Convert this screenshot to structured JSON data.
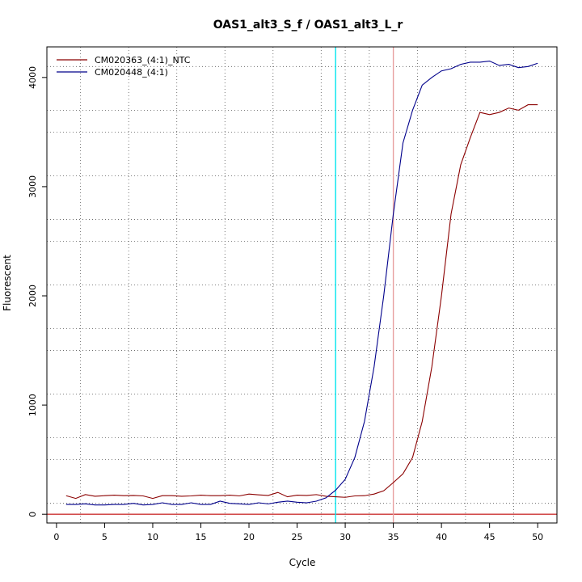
{
  "chart_data": {
    "type": "line",
    "title": "OAS1_alt3_S_f / OAS1_alt3_L_r",
    "xlabel": "Cycle",
    "ylabel": "Fluorescent",
    "xlim": [
      -1,
      52
    ],
    "ylim": [
      -80,
      4280
    ],
    "x_ticks": [
      0,
      5,
      10,
      15,
      20,
      25,
      30,
      35,
      40,
      45,
      50
    ],
    "y_ticks": [
      0,
      1000,
      2000,
      3000,
      4000
    ],
    "x_grid": [
      2.5,
      7.5,
      12.5,
      17.5,
      22.5,
      27.5,
      30.0,
      32.5,
      35.0,
      37.5,
      42.5,
      47.5
    ],
    "y_grid": [
      100,
      500,
      700,
      1100,
      1500,
      1700,
      2100,
      2500,
      2700,
      3100,
      3500,
      3700,
      4100
    ],
    "grid": "dotted",
    "legend_position": "top-left",
    "vertical_lines": [
      {
        "x": 29.0,
        "color": "#00e5ee"
      },
      {
        "x": 35.0,
        "color": "#e8a0a0"
      }
    ],
    "baseline": {
      "y": 0,
      "color": "#cc3333"
    },
    "series": [
      {
        "name": "CM020363_(4:1)_NTC",
        "color": "#8b0000",
        "x": [
          1,
          2,
          3,
          4,
          5,
          6,
          7,
          8,
          9,
          10,
          11,
          12,
          13,
          14,
          15,
          16,
          17,
          18,
          19,
          20,
          21,
          22,
          23,
          24,
          25,
          26,
          27,
          28,
          29,
          30,
          31,
          32,
          33,
          34,
          35,
          36,
          37,
          38,
          39,
          40,
          41,
          42,
          43,
          44,
          45,
          46,
          47,
          48,
          49,
          50
        ],
        "values": [
          170,
          145,
          180,
          165,
          170,
          175,
          170,
          172,
          168,
          145,
          170,
          170,
          165,
          168,
          175,
          170,
          170,
          175,
          168,
          185,
          178,
          172,
          200,
          160,
          175,
          172,
          180,
          165,
          160,
          155,
          168,
          170,
          185,
          215,
          290,
          370,
          520,
          850,
          1350,
          2000,
          2750,
          3200,
          3450,
          3680,
          3660,
          3680,
          3720,
          3700,
          3750,
          3750
        ]
      },
      {
        "name": "CM020448_(4:1)",
        "color": "#00008b",
        "x": [
          1,
          2,
          3,
          4,
          5,
          6,
          7,
          8,
          9,
          10,
          11,
          12,
          13,
          14,
          15,
          16,
          17,
          18,
          19,
          20,
          21,
          22,
          23,
          24,
          25,
          26,
          27,
          28,
          29,
          30,
          31,
          32,
          33,
          34,
          35,
          36,
          37,
          38,
          39,
          40,
          41,
          42,
          43,
          44,
          45,
          46,
          47,
          48,
          49,
          50
        ],
        "values": [
          90,
          90,
          95,
          85,
          85,
          90,
          90,
          100,
          85,
          90,
          105,
          90,
          90,
          105,
          90,
          90,
          120,
          100,
          95,
          90,
          105,
          95,
          110,
          120,
          110,
          105,
          120,
          150,
          220,
          320,
          520,
          850,
          1350,
          2000,
          2750,
          3400,
          3700,
          3930,
          4000,
          4060,
          4080,
          4120,
          4140,
          4140,
          4150,
          4110,
          4120,
          4090,
          4100,
          4130
        ]
      }
    ]
  }
}
